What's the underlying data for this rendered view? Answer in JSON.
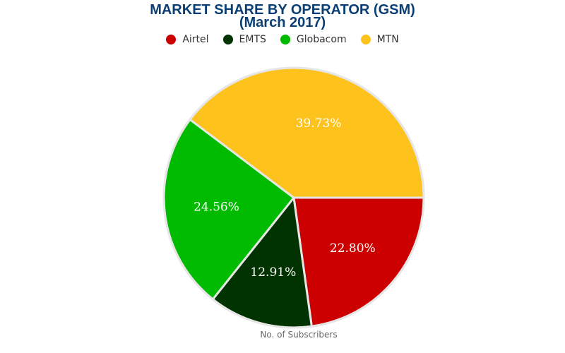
{
  "chart_data": {
    "type": "pie",
    "title": "MARKET SHARE BY OPERATOR (GSM)",
    "subtitle": "(March 2017)",
    "legend_position": "top",
    "footer_label": "No. of Subscribers",
    "series": [
      {
        "name": "Airtel",
        "value": 22.8,
        "label": "22.80%",
        "color": "#cc0000"
      },
      {
        "name": "EMTS",
        "value": 12.91,
        "label": "12.91%",
        "color": "#003300"
      },
      {
        "name": "Globacom",
        "value": 24.56,
        "label": "24.56%",
        "color": "#00bb00"
      },
      {
        "name": "MTN",
        "value": 39.73,
        "label": "39.73%",
        "color": "#fdc21b"
      }
    ]
  }
}
